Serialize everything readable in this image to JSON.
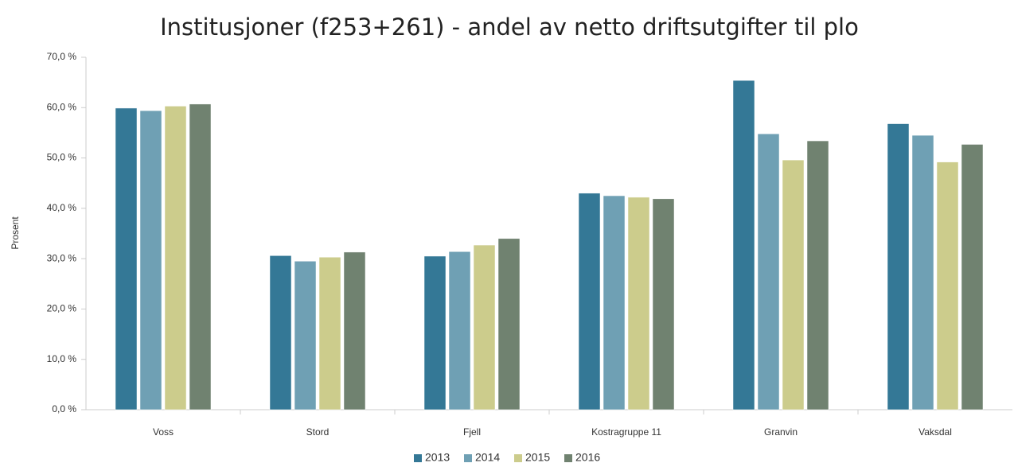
{
  "chart_data": {
    "type": "bar",
    "title": "Institusjoner (f253+261) - andel av netto driftsutgifter til plo",
    "y_label": "Prosent",
    "categories": [
      "Voss",
      "Stord",
      "Fjell",
      "Kostragruppe 11",
      "Granvin",
      "Vaksdal"
    ],
    "series": [
      {
        "name": "2013",
        "color": "#347896",
        "values": [
          59.9,
          30.6,
          30.5,
          43.0,
          65.4,
          56.8
        ]
      },
      {
        "name": "2014",
        "color": "#6fa0b4",
        "values": [
          59.4,
          29.5,
          31.4,
          42.5,
          54.8,
          54.5
        ]
      },
      {
        "name": "2015",
        "color": "#cccc8c",
        "values": [
          60.3,
          30.3,
          32.7,
          42.2,
          49.6,
          49.2
        ]
      },
      {
        "name": "2016",
        "color": "#708270",
        "values": [
          60.7,
          31.3,
          34.0,
          41.9,
          53.4,
          52.7
        ]
      }
    ],
    "ylim": [
      0,
      70
    ],
    "yticks": [
      {
        "value": 0,
        "label": "0,0 %"
      },
      {
        "value": 10,
        "label": "10,0 %"
      },
      {
        "value": 20,
        "label": "20,0 %"
      },
      {
        "value": 30,
        "label": "30,0 %"
      },
      {
        "value": 40,
        "label": "40,0 %"
      },
      {
        "value": 50,
        "label": "50,0 %"
      },
      {
        "value": 60,
        "label": "60,0 %"
      },
      {
        "value": 70,
        "label": "70,0 %"
      }
    ],
    "legend": "bottom"
  }
}
